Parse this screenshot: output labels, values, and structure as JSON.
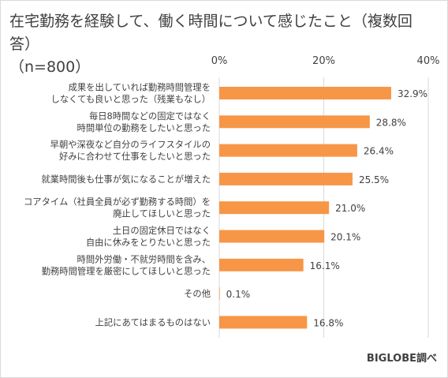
{
  "chart_data": {
    "type": "bar",
    "orientation": "horizontal",
    "title": "在宅勤務を経験して、働く時間について感じたこと（複数回答）\n（n=800）",
    "categories": [
      "成果を出していれば勤務時間管理を\nしなくても良いと思った（残業もなし）",
      "毎日8時間などの固定ではなく\n時間単位の勤務をしたいと思った",
      "早朝や深夜など自分のライフスタイルの\n好みに合わせて仕事をしたいと思った",
      "就業時間後も仕事が気になることが増えた",
      "コアタイム（社員全員が必ず勤務する時間）を\n廃止してほしいと思った",
      "土日の固定休日ではなく\n自由に休みをとりたいと思った",
      "時間外労働・不就労時間を含み、\n勤務時間管理を厳密にしてほしいと思った",
      "その他",
      "上記にあてはまるものはない"
    ],
    "values": [
      32.9,
      28.8,
      26.4,
      25.5,
      21.0,
      20.1,
      16.1,
      0.1,
      16.8
    ],
    "value_labels": [
      "32.9%",
      "28.8%",
      "26.4%",
      "25.5%",
      "21.0%",
      "20.1%",
      "16.1%",
      "0.1%",
      "16.8%"
    ],
    "xlim": [
      0,
      40
    ],
    "ticks": [
      0,
      20,
      40
    ],
    "tick_labels": [
      "0%",
      "20%",
      "40%"
    ],
    "grid": true,
    "bar_color": "#F79646",
    "gridline_color": "#d9d9d9",
    "text_color": "#404040"
  },
  "source_note": "BIGLOBE調べ"
}
